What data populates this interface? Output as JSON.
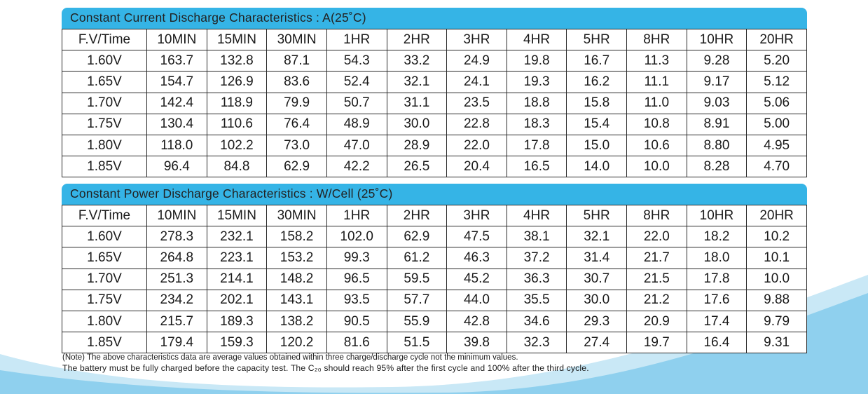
{
  "current_table": {
    "title": "Constant Current Discharge Characteristics : A(25˚C)",
    "headers": [
      "F.V/Time",
      "10MIN",
      "15MIN",
      "30MIN",
      "1HR",
      "2HR",
      "3HR",
      "4HR",
      "5HR",
      "8HR",
      "10HR",
      "20HR"
    ],
    "rows": [
      [
        "1.60V",
        "163.7",
        "132.8",
        "87.1",
        "54.3",
        "33.2",
        "24.9",
        "19.8",
        "16.7",
        "11.3",
        "9.28",
        "5.20"
      ],
      [
        "1.65V",
        "154.7",
        "126.9",
        "83.6",
        "52.4",
        "32.1",
        "24.1",
        "19.3",
        "16.2",
        "11.1",
        "9.17",
        "5.12"
      ],
      [
        "1.70V",
        "142.4",
        "118.9",
        "79.9",
        "50.7",
        "31.1",
        "23.5",
        "18.8",
        "15.8",
        "11.0",
        "9.03",
        "5.06"
      ],
      [
        "1.75V",
        "130.4",
        "110.6",
        "76.4",
        "48.9",
        "30.0",
        "22.8",
        "18.3",
        "15.4",
        "10.8",
        "8.91",
        "5.00"
      ],
      [
        "1.80V",
        "118.0",
        "102.2",
        "73.0",
        "47.0",
        "28.9",
        "22.0",
        "17.8",
        "15.0",
        "10.6",
        "8.80",
        "4.95"
      ],
      [
        "1.85V",
        "96.4",
        "84.8",
        "62.9",
        "42.2",
        "26.5",
        "20.4",
        "16.5",
        "14.0",
        "10.0",
        "8.28",
        "4.70"
      ]
    ]
  },
  "power_table": {
    "title": "Constant Power Discharge Characteristics : W/Cell (25˚C)",
    "headers": [
      "F.V/Time",
      "10MIN",
      "15MIN",
      "30MIN",
      "1HR",
      "2HR",
      "3HR",
      "4HR",
      "5HR",
      "8HR",
      "10HR",
      "20HR"
    ],
    "rows": [
      [
        "1.60V",
        "278.3",
        "232.1",
        "158.2",
        "102.0",
        "62.9",
        "47.5",
        "38.1",
        "32.1",
        "22.0",
        "18.2",
        "10.2"
      ],
      [
        "1.65V",
        "264.8",
        "223.1",
        "153.2",
        "99.3",
        "61.2",
        "46.3",
        "37.2",
        "31.4",
        "21.7",
        "18.0",
        "10.1"
      ],
      [
        "1.70V",
        "251.3",
        "214.1",
        "148.2",
        "96.5",
        "59.5",
        "45.2",
        "36.3",
        "30.7",
        "21.5",
        "17.8",
        "10.0"
      ],
      [
        "1.75V",
        "234.2",
        "202.1",
        "143.1",
        "93.5",
        "57.7",
        "44.0",
        "35.5",
        "30.0",
        "21.2",
        "17.6",
        "9.88"
      ],
      [
        "1.80V",
        "215.7",
        "189.3",
        "138.2",
        "90.5",
        "55.9",
        "42.8",
        "34.6",
        "29.3",
        "20.9",
        "17.4",
        "9.79"
      ],
      [
        "1.85V",
        "179.4",
        "159.3",
        "120.2",
        "81.6",
        "51.5",
        "39.8",
        "32.3",
        "27.4",
        "19.7",
        "16.4",
        "9.31"
      ]
    ]
  },
  "notes": {
    "note1": "(Note) The above characteristics data are average values obtained within three charge/discharge cycle not the minimum values.",
    "note2": "The battery must be fully charged before the capacity test.  The C₂₀ should reach 95% after the first cycle and 100% after the third cycle."
  },
  "colors": {
    "header_bar": "#35b4e6",
    "wave_light": "#c9e8f6",
    "wave_main": "#8fd0ee"
  }
}
